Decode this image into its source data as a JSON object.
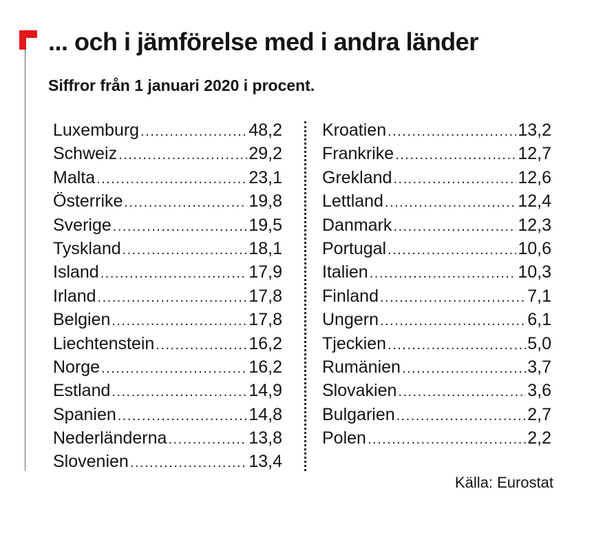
{
  "chart_data": {
    "type": "table",
    "title": "... och i jämförelse med i andra länder",
    "subtitle": "Siffror från 1 januari 2020 i procent.",
    "source": "Källa: Eurostat",
    "columns": [
      [
        {
          "country": "Luxemburg",
          "value": "48,2"
        },
        {
          "country": "Schweiz",
          "value": "29,2"
        },
        {
          "country": "Malta",
          "value": "23,1"
        },
        {
          "country": "Österrike",
          "value": "19,8"
        },
        {
          "country": "Sverige",
          "value": "19,5"
        },
        {
          "country": "Tyskland",
          "value": "18,1"
        },
        {
          "country": "Island",
          "value": "17,9"
        },
        {
          "country": "Irland",
          "value": "17,8"
        },
        {
          "country": "Belgien",
          "value": "17,8"
        },
        {
          "country": "Liechtenstein",
          "value": "16,2"
        },
        {
          "country": "Norge",
          "value": "16,2"
        },
        {
          "country": "Estland",
          "value": "14,9"
        },
        {
          "country": "Spanien",
          "value": "14,8"
        },
        {
          "country": "Nederländerna",
          "value": "13,8"
        },
        {
          "country": "Slovenien",
          "value": "13,4"
        }
      ],
      [
        {
          "country": "Kroatien",
          "value": "13,2"
        },
        {
          "country": "Frankrike",
          "value": "12,7"
        },
        {
          "country": "Grekland",
          "value": "12,6"
        },
        {
          "country": "Lettland",
          "value": "12,4"
        },
        {
          "country": "Danmark",
          "value": "12,3"
        },
        {
          "country": "Portugal",
          "value": "10,6"
        },
        {
          "country": "Italien",
          "value": "10,3"
        },
        {
          "country": "Finland",
          "value": "7,1"
        },
        {
          "country": "Ungern",
          "value": "6,1"
        },
        {
          "country": "Tjeckien",
          "value": "5,0"
        },
        {
          "country": "Rumänien",
          "value": "3,7"
        },
        {
          "country": "Slovakien",
          "value": "3,6"
        },
        {
          "country": "Bulgarien",
          "value": "2,7"
        },
        {
          "country": "Polen",
          "value": "2,2"
        }
      ]
    ]
  },
  "colors": {
    "accent": "#e3161a",
    "text": "#141414",
    "background": "#ffffff"
  }
}
